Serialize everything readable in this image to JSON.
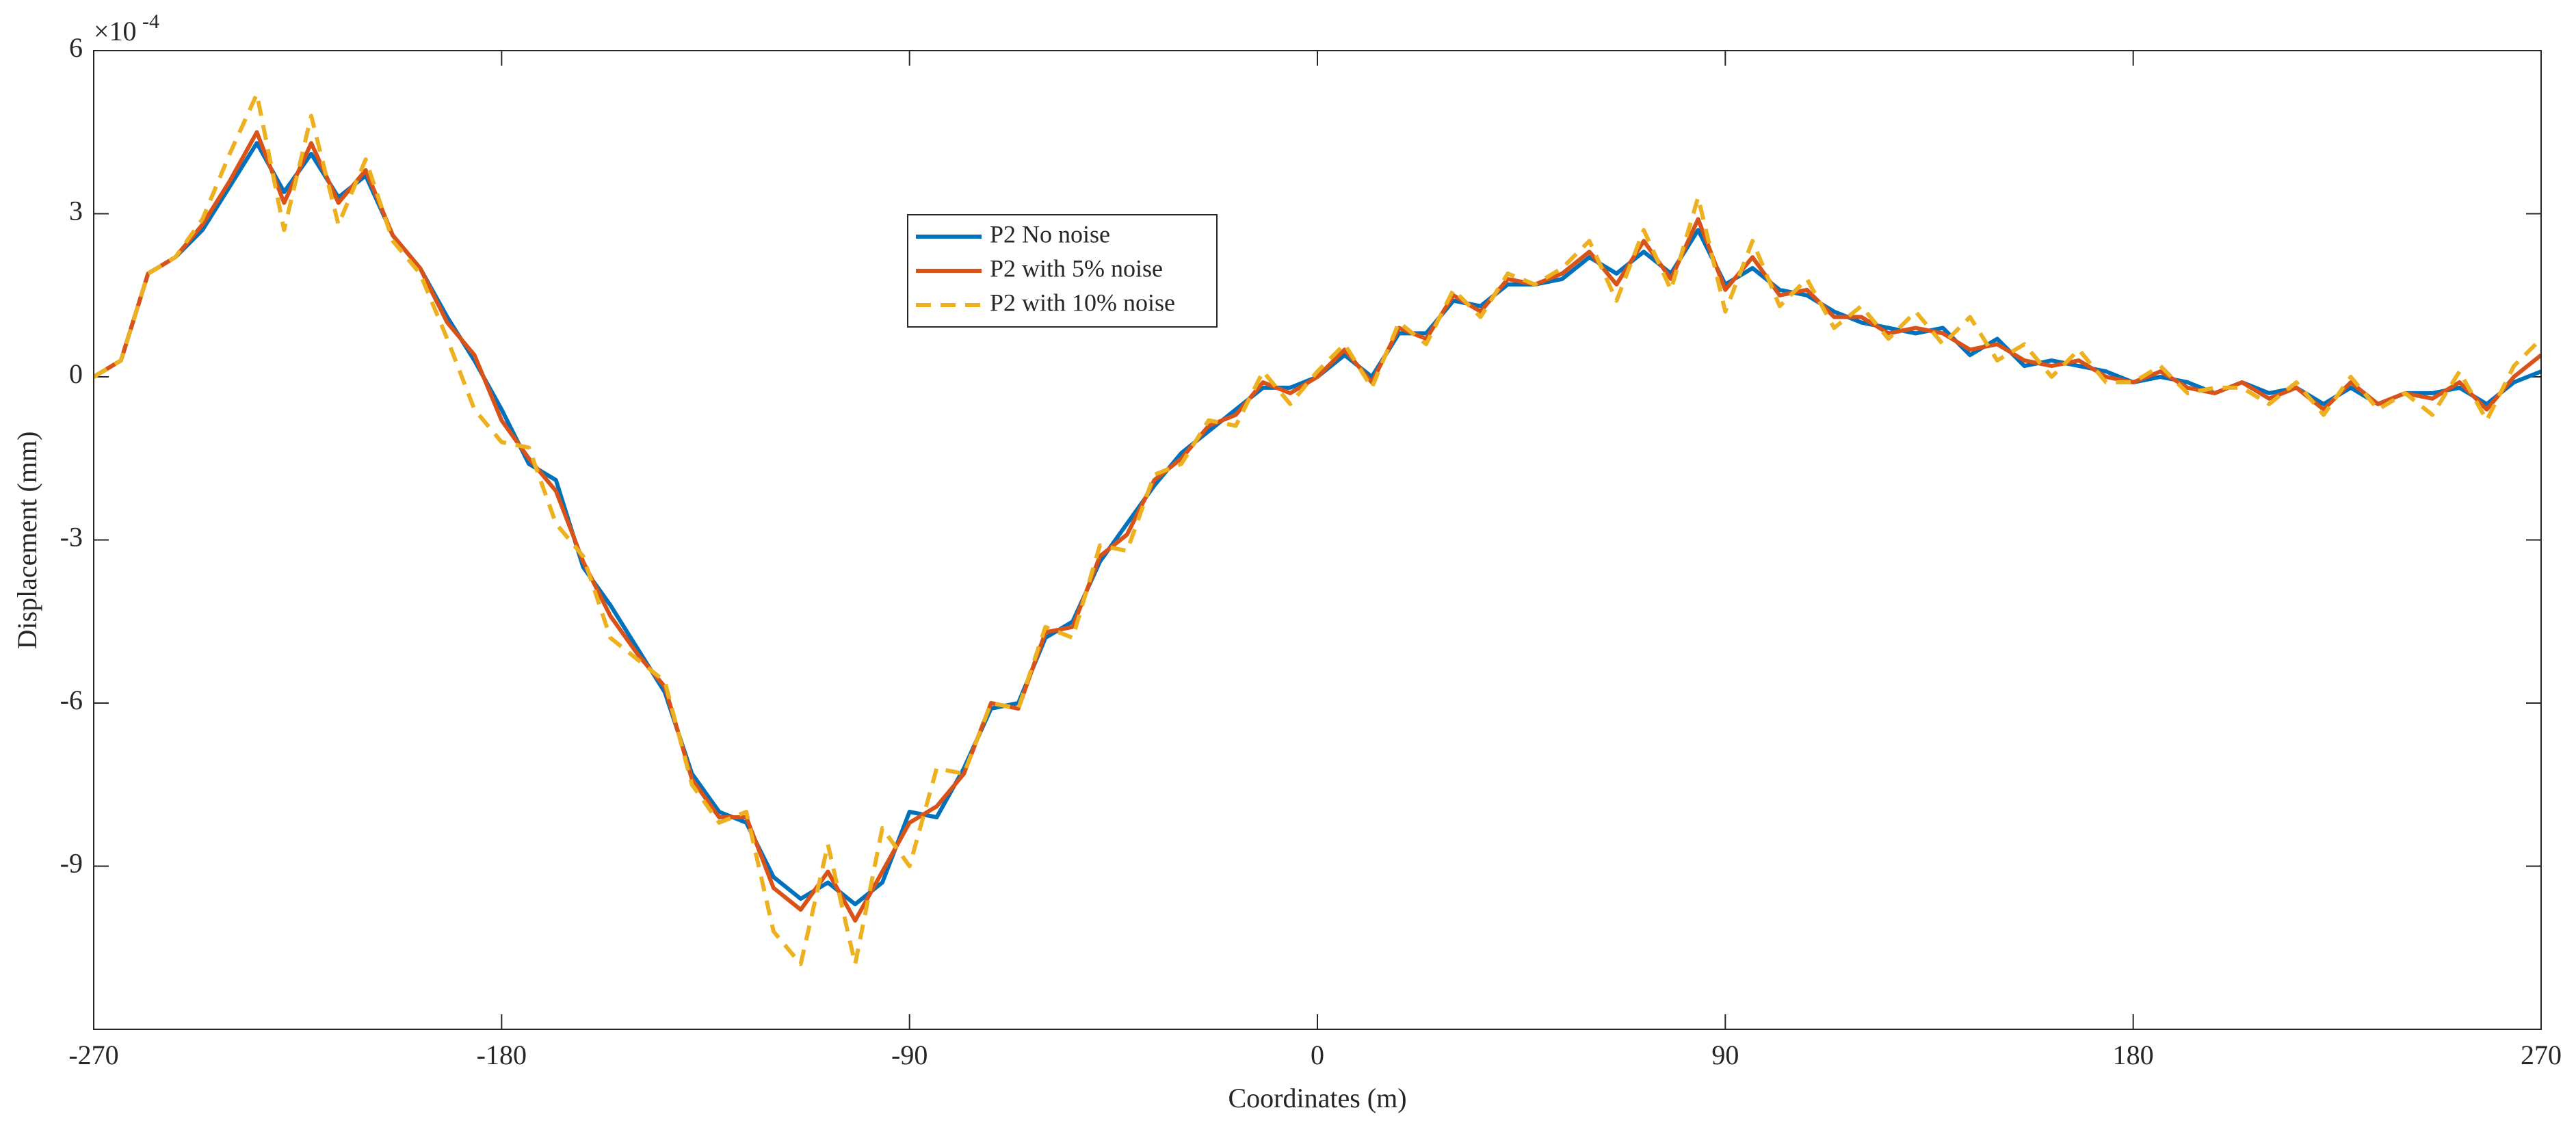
{
  "chart_data": {
    "type": "line",
    "x_label": "Coordinates (m)",
    "y_label": "Displacement (mm)",
    "y_multiplier": {
      "base": "×10",
      "exponent": "-4"
    },
    "xlim": [
      -270,
      270
    ],
    "xticks": [
      -270,
      -180,
      -90,
      0,
      90,
      180,
      270
    ],
    "ylim": [
      -12,
      6
    ],
    "yticks": [
      -9,
      -6,
      -3,
      0,
      3,
      6
    ],
    "grid": false,
    "x": [
      -270,
      -264,
      -258,
      -252,
      -246,
      -240,
      -234,
      -228,
      -222,
      -216,
      -210,
      -204,
      -198,
      -192,
      -186,
      -180,
      -174,
      -168,
      -162,
      -156,
      -150,
      -144,
      -138,
      -132,
      -126,
      -120,
      -114,
      -108,
      -102,
      -96,
      -90,
      -84,
      -78,
      -72,
      -66,
      -60,
      -54,
      -48,
      -42,
      -36,
      -30,
      -24,
      -18,
      -12,
      -6,
      0,
      6,
      12,
      18,
      24,
      30,
      36,
      42,
      48,
      54,
      60,
      66,
      72,
      78,
      84,
      90,
      96,
      102,
      108,
      114,
      120,
      126,
      132,
      138,
      144,
      150,
      156,
      162,
      168,
      174,
      180,
      186,
      192,
      198,
      204,
      210,
      216,
      222,
      228,
      234,
      240,
      246,
      252,
      258,
      264,
      270
    ],
    "series": [
      {
        "name": "P2 No noise",
        "color": "#0072BD",
        "line_style": "solid",
        "values": [
          0,
          0.3,
          1.9,
          2.2,
          2.7,
          3.5,
          4.3,
          3.4,
          4.1,
          3.3,
          3.7,
          2.6,
          2.0,
          1.1,
          0.3,
          -0.6,
          -1.6,
          -1.9,
          -3.5,
          -4.2,
          -5.0,
          -5.8,
          -7.3,
          -8.0,
          -8.2,
          -9.2,
          -9.6,
          -9.3,
          -9.7,
          -9.3,
          -8.0,
          -8.1,
          -7.2,
          -6.1,
          -6.0,
          -4.8,
          -4.5,
          -3.4,
          -2.7,
          -2.0,
          -1.4,
          -1.0,
          -0.6,
          -0.2,
          -0.2,
          0.0,
          0.4,
          0.0,
          0.8,
          0.8,
          1.4,
          1.3,
          1.7,
          1.7,
          1.8,
          2.2,
          1.9,
          2.3,
          1.9,
          2.7,
          1.7,
          2.0,
          1.6,
          1.5,
          1.2,
          1.0,
          0.9,
          0.8,
          0.9,
          0.4,
          0.7,
          0.2,
          0.3,
          0.2,
          0.1,
          -0.1,
          0.0,
          -0.1,
          -0.3,
          -0.1,
          -0.3,
          -0.2,
          -0.5,
          -0.2,
          -0.5,
          -0.3,
          -0.3,
          -0.2,
          -0.5,
          -0.1,
          0.1
        ]
      },
      {
        "name": "P2 with 5% noise",
        "color": "#D95319",
        "line_style": "solid",
        "values": [
          0,
          0.3,
          1.9,
          2.2,
          2.8,
          3.6,
          4.5,
          3.2,
          4.3,
          3.2,
          3.8,
          2.6,
          2.0,
          1.0,
          0.4,
          -0.8,
          -1.5,
          -2.1,
          -3.4,
          -4.4,
          -5.1,
          -5.7,
          -7.4,
          -8.1,
          -8.1,
          -9.4,
          -9.8,
          -9.1,
          -10.0,
          -9.1,
          -8.2,
          -7.9,
          -7.3,
          -6.0,
          -6.1,
          -4.7,
          -4.6,
          -3.3,
          -2.9,
          -1.9,
          -1.5,
          -0.9,
          -0.7,
          -0.1,
          -0.3,
          0.0,
          0.5,
          -0.1,
          0.9,
          0.7,
          1.5,
          1.2,
          1.8,
          1.7,
          1.9,
          2.3,
          1.7,
          2.5,
          1.8,
          2.9,
          1.6,
          2.2,
          1.5,
          1.6,
          1.1,
          1.1,
          0.8,
          0.9,
          0.8,
          0.5,
          0.6,
          0.3,
          0.2,
          0.3,
          0.0,
          -0.1,
          0.1,
          -0.2,
          -0.3,
          -0.1,
          -0.4,
          -0.2,
          -0.6,
          -0.1,
          -0.5,
          -0.3,
          -0.4,
          -0.1,
          -0.6,
          0.0,
          0.4
        ]
      },
      {
        "name": "P2 with 10% noise",
        "color": "#EDB120",
        "line_style": "dashed",
        "values": [
          0,
          0.3,
          1.9,
          2.2,
          2.9,
          4.1,
          5.2,
          2.7,
          4.8,
          2.8,
          4.0,
          2.5,
          1.9,
          0.7,
          -0.6,
          -1.2,
          -1.3,
          -2.7,
          -3.3,
          -4.8,
          -5.2,
          -5.6,
          -7.5,
          -8.2,
          -8.0,
          -10.2,
          -10.8,
          -8.6,
          -10.8,
          -8.3,
          -9.0,
          -7.2,
          -7.3,
          -6.0,
          -6.1,
          -4.6,
          -4.8,
          -3.1,
          -3.2,
          -1.8,
          -1.6,
          -0.8,
          -0.9,
          0.1,
          -0.5,
          0.1,
          0.6,
          -0.2,
          1.0,
          0.6,
          1.6,
          1.1,
          1.9,
          1.7,
          2.0,
          2.5,
          1.4,
          2.7,
          1.6,
          3.3,
          1.2,
          2.5,
          1.3,
          1.8,
          0.9,
          1.3,
          0.7,
          1.2,
          0.6,
          1.1,
          0.3,
          0.6,
          0.0,
          0.5,
          -0.1,
          -0.1,
          0.2,
          -0.3,
          -0.2,
          -0.2,
          -0.5,
          -0.1,
          -0.7,
          0.0,
          -0.6,
          -0.3,
          -0.7,
          0.1,
          -0.8,
          0.2,
          0.7
        ]
      }
    ]
  }
}
